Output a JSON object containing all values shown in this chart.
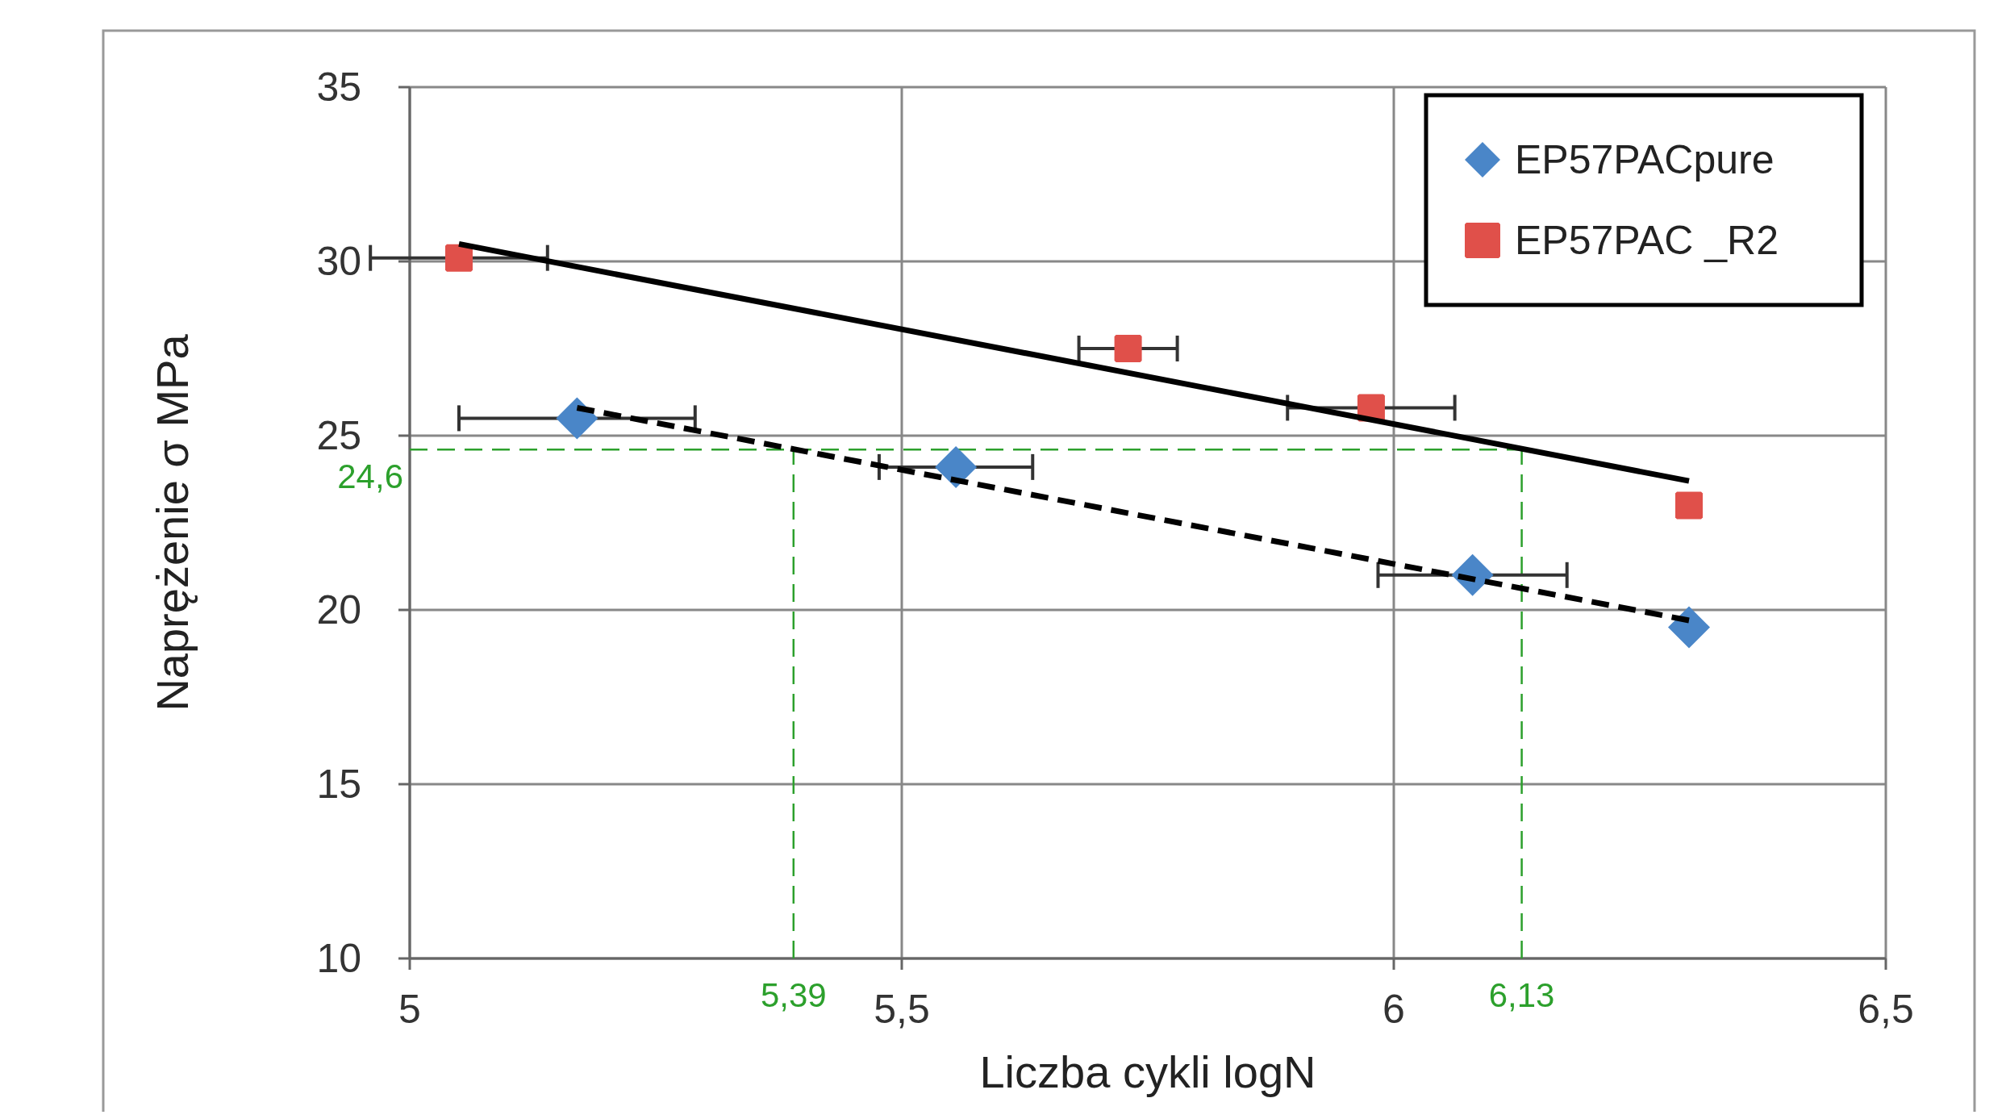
{
  "chart_data": {
    "type": "scatter",
    "xlabel": "Liczba cykli logN",
    "ylabel": "Naprężenie  σ MPa",
    "xlim": [
      5,
      6.5
    ],
    "xticks": [
      5,
      {
        "value": 5.5,
        "label": "5,5"
      },
      6,
      {
        "value": 6.5,
        "label": "6,5"
      }
    ],
    "ylim": [
      10,
      35
    ],
    "yticks": [
      10,
      15,
      20,
      25,
      30,
      35
    ],
    "grid": true,
    "legend": "top right",
    "series": [
      {
        "name": "EP57PACpure",
        "color": "#4a86c8",
        "marker": "diamond",
        "x": [
          5.17,
          5.555,
          6.08,
          6.3
        ],
        "values": [
          25.5,
          24.1,
          21,
          19.5
        ],
        "xerrors": [
          0.12,
          0.078,
          0.096,
          null
        ]
      },
      {
        "name": "EP57PAC _R2",
        "color": "#e0504a",
        "marker": "square",
        "x": [
          5.05,
          5.73,
          5.977,
          6.3
        ],
        "values": [
          30.1,
          27.5,
          25.8,
          23
        ],
        "xerrors": [
          0.09,
          0.05,
          0.085,
          null
        ]
      },
      {
        "type": "line",
        "color": "#000000",
        "line_style": "solid",
        "marker": "none",
        "x": [
          5.05,
          6.3
        ],
        "values": [
          30.5,
          23.7
        ]
      },
      {
        "type": "line",
        "color": "#000000",
        "line_style": "dashed",
        "marker": "none",
        "x": [
          5.17,
          6.3
        ],
        "values": [
          25.8,
          19.7
        ]
      }
    ],
    "ref_lines": [
      {
        "axis": "y",
        "value": 24.6,
        "label": "24,6",
        "color": "#2ca02c",
        "line_style": "dashed"
      },
      {
        "axis": "x",
        "value": 5.39,
        "label": "5,39",
        "color": "#2ca02c",
        "line_style": "dashed"
      },
      {
        "axis": "x",
        "value": 6.13,
        "label": "6,13",
        "color": "#2ca02c",
        "line_style": "dashed"
      }
    ]
  }
}
